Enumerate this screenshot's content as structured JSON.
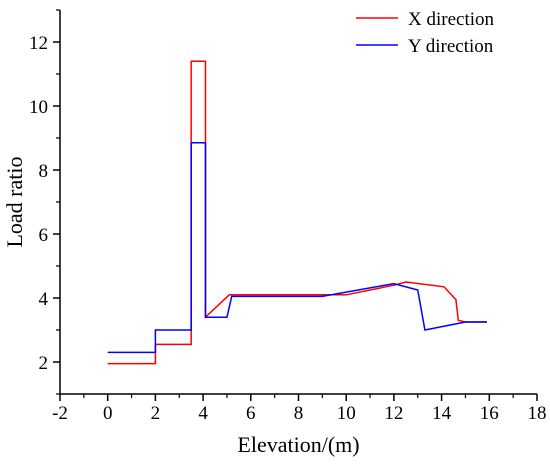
{
  "chart_data": {
    "type": "line",
    "title": "",
    "xlabel": "Elevation/(m)",
    "ylabel": "Load ratio",
    "xlim": [
      -2,
      18
    ],
    "ylim": [
      1,
      13
    ],
    "xticks": [
      -2,
      0,
      2,
      4,
      6,
      8,
      10,
      12,
      14,
      16,
      18
    ],
    "xtick_labels": [
      "-2",
      "0",
      "2",
      "4",
      "6",
      "8",
      "10",
      "12",
      "14",
      "16",
      "18"
    ],
    "yticks": [
      2,
      4,
      6,
      8,
      10,
      12
    ],
    "ytick_labels": [
      "2",
      "4",
      "6",
      "8",
      "10",
      "12"
    ],
    "grid": false,
    "legend_position": "top-right",
    "series": [
      {
        "name": "X direction",
        "color": "#ff0000",
        "points": [
          [
            0,
            1.95
          ],
          [
            2.0,
            1.95
          ],
          [
            2.0,
            2.55
          ],
          [
            3.5,
            2.55
          ],
          [
            3.5,
            11.4
          ],
          [
            4.1,
            11.4
          ],
          [
            4.1,
            3.4
          ],
          [
            5.1,
            4.1
          ],
          [
            9.0,
            4.1
          ],
          [
            10.0,
            4.1
          ],
          [
            11.0,
            4.25
          ],
          [
            12.0,
            4.4
          ],
          [
            12.5,
            4.5
          ],
          [
            14.1,
            4.35
          ],
          [
            14.6,
            3.95
          ],
          [
            14.7,
            3.3
          ],
          [
            15.0,
            3.25
          ],
          [
            15.9,
            3.25
          ]
        ]
      },
      {
        "name": "Y direction",
        "color": "#0000ff",
        "points": [
          [
            0,
            2.3
          ],
          [
            2.0,
            2.3
          ],
          [
            2.0,
            3.0
          ],
          [
            3.5,
            3.0
          ],
          [
            3.5,
            8.85
          ],
          [
            4.1,
            8.85
          ],
          [
            4.1,
            3.4
          ],
          [
            5.0,
            3.4
          ],
          [
            5.2,
            4.05
          ],
          [
            9.0,
            4.05
          ],
          [
            12.0,
            4.45
          ],
          [
            13.0,
            4.25
          ],
          [
            13.3,
            3.0
          ],
          [
            15.0,
            3.25
          ],
          [
            15.9,
            3.25
          ]
        ]
      }
    ]
  }
}
